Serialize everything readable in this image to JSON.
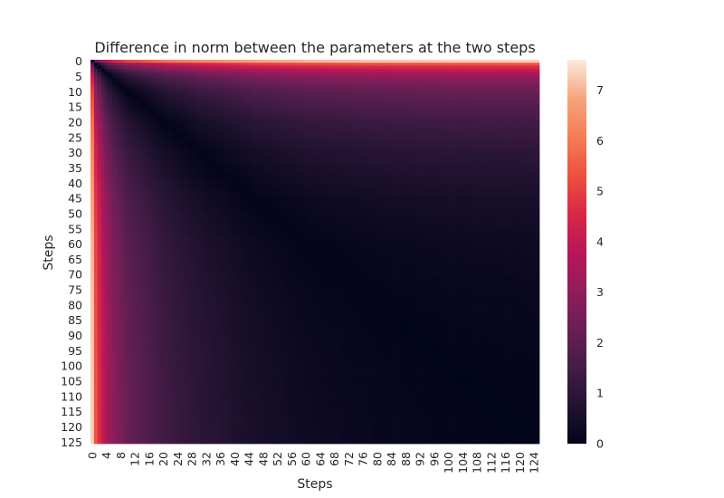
{
  "chart_data": {
    "type": "heatmap",
    "title": "Difference in norm between the parameters at the two steps",
    "xlabel": "Steps",
    "ylabel": "Steps",
    "rows": 126,
    "cols": 126,
    "x_tick_values": [
      0,
      4,
      8,
      12,
      16,
      20,
      24,
      28,
      32,
      36,
      40,
      44,
      48,
      52,
      56,
      60,
      64,
      68,
      72,
      76,
      80,
      84,
      88,
      92,
      96,
      100,
      104,
      108,
      112,
      116,
      120,
      124
    ],
    "y_tick_values": [
      0,
      5,
      10,
      15,
      20,
      25,
      30,
      35,
      40,
      45,
      50,
      55,
      60,
      65,
      70,
      75,
      80,
      85,
      90,
      95,
      100,
      105,
      110,
      115,
      120,
      125
    ],
    "colorbar": {
      "colormap": "rocket",
      "vmin": 0,
      "vmax": 7.6,
      "tick_values": [
        0,
        1,
        2,
        3,
        4,
        5,
        6,
        7
      ]
    },
    "value_model": {
      "description": "symmetric matrix, value(i,j) = |f(i) - f(j)|, with f(0) roughly 7.6, f(1) roughly 5.6, decaying toward a plateau near 0.3 by step 125",
      "f_at_steps": {
        "0": 7.6,
        "1": 5.6,
        "2": 4.9,
        "3": 4.3,
        "4": 3.8,
        "6": 3.2,
        "10": 2.5,
        "20": 1.7,
        "30": 1.25,
        "45": 0.8,
        "60": 0.55,
        "80": 0.4,
        "100": 0.32,
        "125": 0.27
      }
    }
  }
}
